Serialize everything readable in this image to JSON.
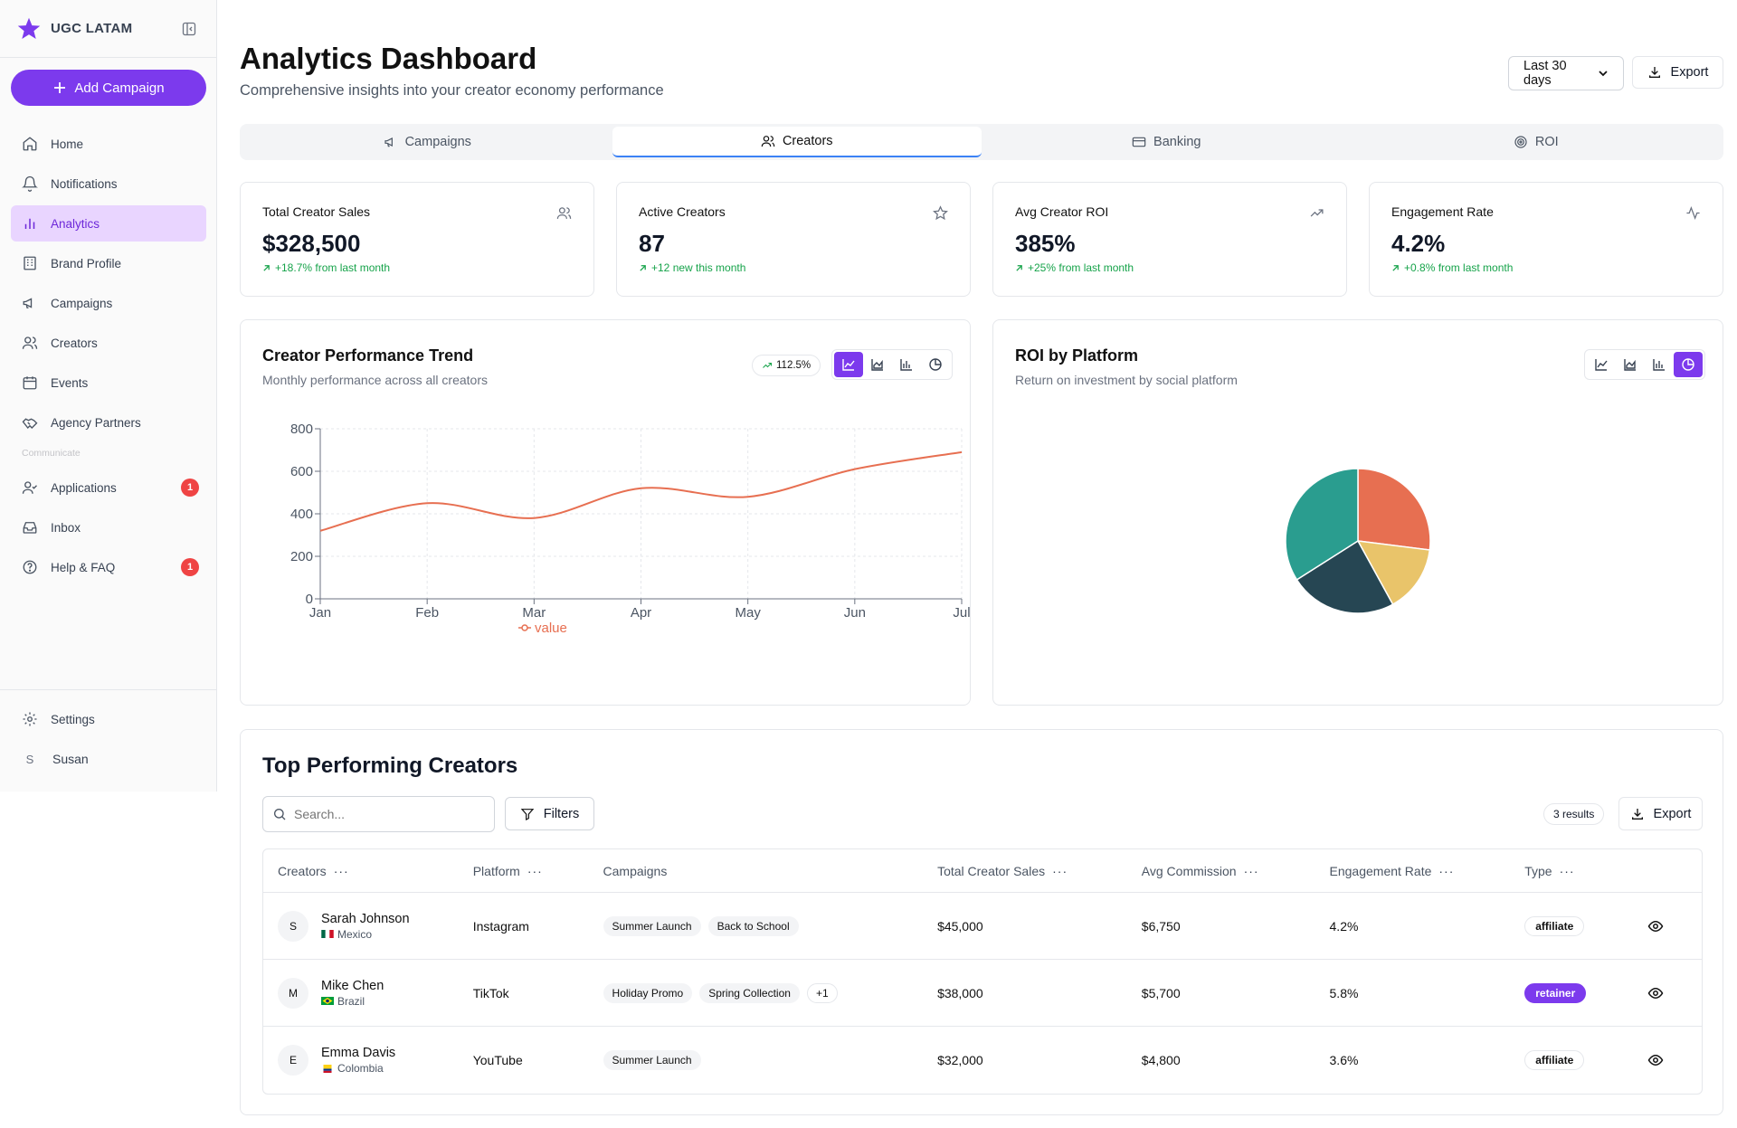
{
  "brand": {
    "name": "UGC LATAM"
  },
  "sidebar": {
    "add_button": "Add Campaign",
    "items": [
      {
        "label": "Home",
        "icon": "home-icon"
      },
      {
        "label": "Notifications",
        "icon": "bell-icon"
      },
      {
        "label": "Analytics",
        "icon": "bar-chart-icon",
        "active": true
      },
      {
        "label": "Brand Profile",
        "icon": "building-icon"
      },
      {
        "label": "Campaigns",
        "icon": "megaphone-icon"
      },
      {
        "label": "Creators",
        "icon": "users-icon"
      },
      {
        "label": "Events",
        "icon": "calendar-icon"
      },
      {
        "label": "Agency Partners",
        "icon": "handshake-icon"
      }
    ],
    "section_label": "Communicate",
    "comm_items": [
      {
        "label": "Applications",
        "badge": "1"
      },
      {
        "label": "Inbox"
      },
      {
        "label": "Help & FAQ",
        "badge": "1"
      }
    ],
    "settings_label": "Settings",
    "user": {
      "initial": "S",
      "name": "Susan"
    }
  },
  "header": {
    "title": "Analytics Dashboard",
    "subtitle": "Comprehensive insights into your creator economy performance",
    "range_value": "Last 30 days",
    "export_label": "Export"
  },
  "tabs": [
    {
      "label": "Campaigns"
    },
    {
      "label": "Creators",
      "active": true
    },
    {
      "label": "Banking"
    },
    {
      "label": "ROI"
    }
  ],
  "kpis": [
    {
      "title": "Total Creator Sales",
      "value": "$328,500",
      "change": "+18.7% from last month",
      "icon": "users-icon"
    },
    {
      "title": "Active Creators",
      "value": "87",
      "change": "+12 new this month",
      "icon": "star-icon"
    },
    {
      "title": "Avg Creator ROI",
      "value": "385%",
      "change": "+25% from last month",
      "icon": "trending-up-icon"
    },
    {
      "title": "Engagement Rate",
      "value": "4.2%",
      "change": "+0.8% from last month",
      "icon": "activity-icon"
    }
  ],
  "trend_card": {
    "title": "Creator Performance Trend",
    "subtitle": "Monthly performance across all creators",
    "trend_pill": "112.5%"
  },
  "roi_card": {
    "title": "ROI by Platform",
    "subtitle": "Return on investment by social platform"
  },
  "chart_data": [
    {
      "type": "line",
      "categories": [
        "Jan",
        "Feb",
        "Mar",
        "Apr",
        "May",
        "Jun",
        "Jul"
      ],
      "series": [
        {
          "name": "value",
          "values": [
            320,
            450,
            380,
            520,
            480,
            610,
            690
          ],
          "color": "#e76f51"
        }
      ],
      "ylim": [
        0,
        800
      ],
      "yticks": [
        0,
        200,
        400,
        600,
        800
      ],
      "grid": true,
      "legend": "bottom"
    },
    {
      "type": "pie",
      "values": [
        27,
        15,
        24,
        34
      ],
      "colors": [
        "#e76f51",
        "#e9c46a",
        "#264653",
        "#2a9d8f"
      ]
    }
  ],
  "table": {
    "title": "Top Performing Creators",
    "search_placeholder": "Search...",
    "filters_label": "Filters",
    "results_label": "3 results",
    "export_label": "Export",
    "columns": [
      "Creators",
      "Platform",
      "Campaigns",
      "Total Creator Sales",
      "Avg Commission",
      "Engagement Rate",
      "Type"
    ],
    "rows": [
      {
        "initial": "S",
        "name": "Sarah Johnson",
        "country": "Mexico",
        "platform": "Instagram",
        "campaigns": [
          "Summer Launch",
          "Back to School"
        ],
        "more": "",
        "sales": "$45,000",
        "commission": "$6,750",
        "engagement": "4.2%",
        "type": "affiliate"
      },
      {
        "initial": "M",
        "name": "Mike Chen",
        "country": "Brazil",
        "platform": "TikTok",
        "campaigns": [
          "Holiday Promo",
          "Spring Collection"
        ],
        "more": "+1",
        "sales": "$38,000",
        "commission": "$5,700",
        "engagement": "5.8%",
        "type": "retainer"
      },
      {
        "initial": "E",
        "name": "Emma Davis",
        "country": "Colombia",
        "platform": "YouTube",
        "campaigns": [
          "Summer Launch"
        ],
        "more": "",
        "sales": "$32,000",
        "commission": "$4,800",
        "engagement": "3.6%",
        "type": "affiliate"
      }
    ]
  }
}
